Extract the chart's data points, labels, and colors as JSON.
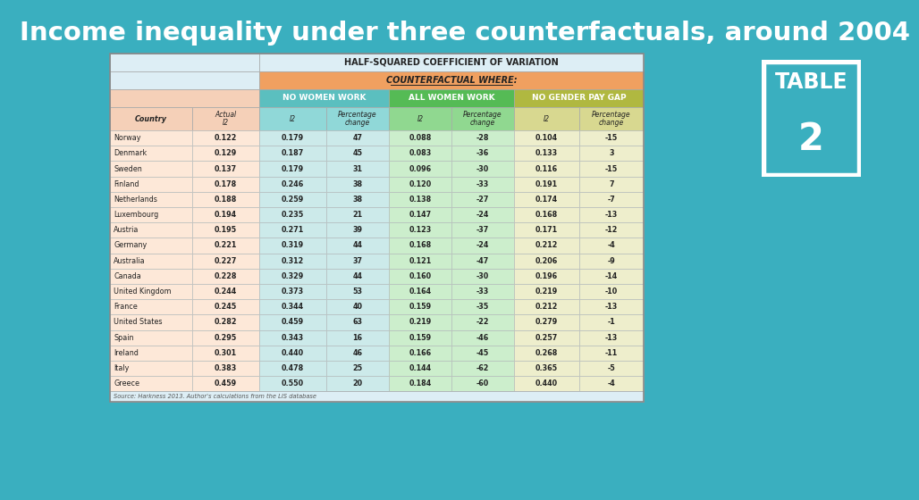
{
  "title": "Income inequality under three counterfactuals, around 2004",
  "table_header1": "HALF-SQUARED COEFFICIENT OF VARIATION",
  "table_header2": "COUNTERFACTUAL WHERE:",
  "col_headers": [
    "NO WOMEN WORK",
    "ALL WOMEN WORK",
    "NO GENDER PAY GAP"
  ],
  "countries": [
    "Norway",
    "Denmark",
    "Sweden",
    "Finland",
    "Netherlands",
    "Luxembourg",
    "Austria",
    "Germany",
    "Australia",
    "Canada",
    "United Kingdom",
    "France",
    "United States",
    "Spain",
    "Ireland",
    "Italy",
    "Greece"
  ],
  "data": [
    [
      0.122,
      0.179,
      47,
      0.088,
      -28,
      0.104,
      -15
    ],
    [
      0.129,
      0.187,
      45,
      0.083,
      -36,
      0.133,
      3
    ],
    [
      0.137,
      0.179,
      31,
      0.096,
      -30,
      0.116,
      -15
    ],
    [
      0.178,
      0.246,
      38,
      0.12,
      -33,
      0.191,
      7
    ],
    [
      0.188,
      0.259,
      38,
      0.138,
      -27,
      0.174,
      -7
    ],
    [
      0.194,
      0.235,
      21,
      0.147,
      -24,
      0.168,
      -13
    ],
    [
      0.195,
      0.271,
      39,
      0.123,
      -37,
      0.171,
      -12
    ],
    [
      0.221,
      0.319,
      44,
      0.168,
      -24,
      0.212,
      -4
    ],
    [
      0.227,
      0.312,
      37,
      0.121,
      -47,
      0.206,
      -9
    ],
    [
      0.228,
      0.329,
      44,
      0.16,
      -30,
      0.196,
      -14
    ],
    [
      0.244,
      0.373,
      53,
      0.164,
      -33,
      0.219,
      -10
    ],
    [
      0.245,
      0.344,
      40,
      0.159,
      -35,
      0.212,
      -13
    ],
    [
      0.282,
      0.459,
      63,
      0.219,
      -22,
      0.279,
      -1
    ],
    [
      0.295,
      0.343,
      16,
      0.159,
      -46,
      0.257,
      -13
    ],
    [
      0.301,
      0.44,
      46,
      0.166,
      -45,
      0.268,
      -11
    ],
    [
      0.383,
      0.478,
      25,
      0.144,
      -62,
      0.365,
      -5
    ],
    [
      0.459,
      0.55,
      20,
      0.184,
      -60,
      0.44,
      -4
    ]
  ],
  "source": "Source: Harkness 2013. Author's calculations from the LIS database",
  "bg_color": "#3aafbf",
  "header1_bg": "#ddeef5",
  "header2_bg": "#f0a060",
  "no_women_header_bg": "#5bbfbf",
  "all_women_header_bg": "#55bb55",
  "no_gender_header_bg": "#b0b840",
  "actual_col_bg": "#f5d0b8",
  "no_women_subhdr_bg": "#90d8d8",
  "all_women_subhdr_bg": "#90d890",
  "no_gender_subhdr_bg": "#d8d890",
  "actual_data_bg": "#fde8d8",
  "no_women_data_bg": "#cceaea",
  "all_women_data_bg": "#cceecc",
  "no_gender_data_bg": "#eeeecc",
  "table2_box_bg": "#3aafbf",
  "title_color": "#ffffff",
  "text_dark": "#222222",
  "source_color": "#cceeee",
  "grid_color": "#aaaaaa"
}
